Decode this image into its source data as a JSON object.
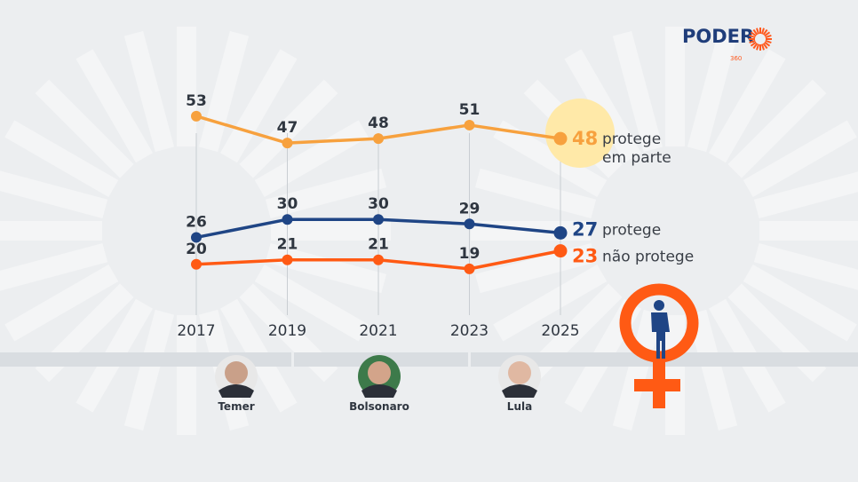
{
  "logo": {
    "text": "PODER",
    "sub": "360",
    "color_blue": "#1f3d7a",
    "color_orange": "#ff5a1f"
  },
  "chart_data": {
    "type": "line",
    "x": [
      2017,
      2019,
      2021,
      2023,
      2025
    ],
    "ylim": [
      0,
      60
    ],
    "grid": "vertical",
    "series": [
      {
        "name": "protege em parte",
        "name_lines": [
          "protege",
          "em parte"
        ],
        "values": [
          53,
          47,
          48,
          51,
          48
        ],
        "color": "#f7a13e",
        "end_label": "48"
      },
      {
        "name": "protege",
        "name_lines": [
          "protege"
        ],
        "values": [
          26,
          30,
          30,
          29,
          27
        ],
        "color": "#1f4585",
        "end_label": "27"
      },
      {
        "name": "não protege",
        "name_lines": [
          "não protege"
        ],
        "values": [
          20,
          21,
          21,
          19,
          23
        ],
        "color": "#ff5a14",
        "end_label": "23"
      }
    ],
    "highlight_color": "#ffe9a8"
  },
  "timeline": {
    "presidents": [
      {
        "name": "Temer",
        "year": 2017
      },
      {
        "name": "Bolsonaro",
        "year": 2020
      },
      {
        "name": "Lula",
        "year": 2023.6
      }
    ]
  },
  "icon": {
    "name": "female-symbol-icon",
    "color": "#ff5a14",
    "figure_color": "#1f4585"
  }
}
